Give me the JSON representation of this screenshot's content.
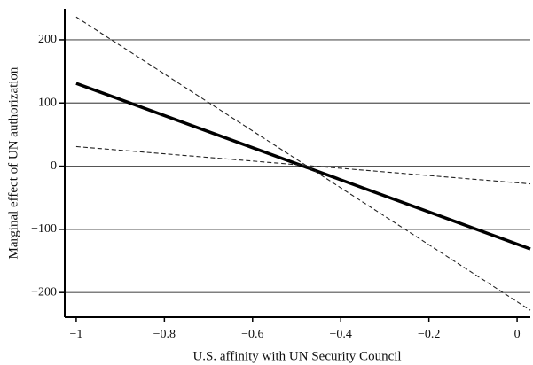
{
  "chart_data": {
    "type": "line",
    "xlabel": "U.S. affinity with UN Security Council",
    "ylabel": "Marginal effect of UN authorization",
    "x": [
      -1,
      0.03
    ],
    "series": [
      {
        "color": "#000000",
        "line_style": "solid",
        "line_width": 3.5,
        "values": [
          131,
          -131
        ]
      },
      {
        "color": "#222222",
        "line_style": "dashed",
        "line_width": 1.1,
        "values": [
          236,
          -228
        ]
      },
      {
        "color": "#222222",
        "line_style": "dashed",
        "line_width": 1.1,
        "values": [
          31,
          -28
        ]
      }
    ],
    "xlim": [
      -1.026,
      0.03
    ],
    "ylim": [
      -239,
      249
    ],
    "xticks": [
      {
        "value": -1,
        "label": "−1"
      },
      {
        "value": -0.8,
        "label": "−0.8"
      },
      {
        "value": -0.6,
        "label": "−0.6"
      },
      {
        "value": -0.4,
        "label": "−0.4"
      },
      {
        "value": -0.2,
        "label": "−0.2"
      },
      0
    ],
    "yticks": [
      {
        "value": -200,
        "label": "−200"
      },
      {
        "value": -100,
        "label": "−100"
      },
      0,
      100,
      200
    ],
    "grid": true
  }
}
